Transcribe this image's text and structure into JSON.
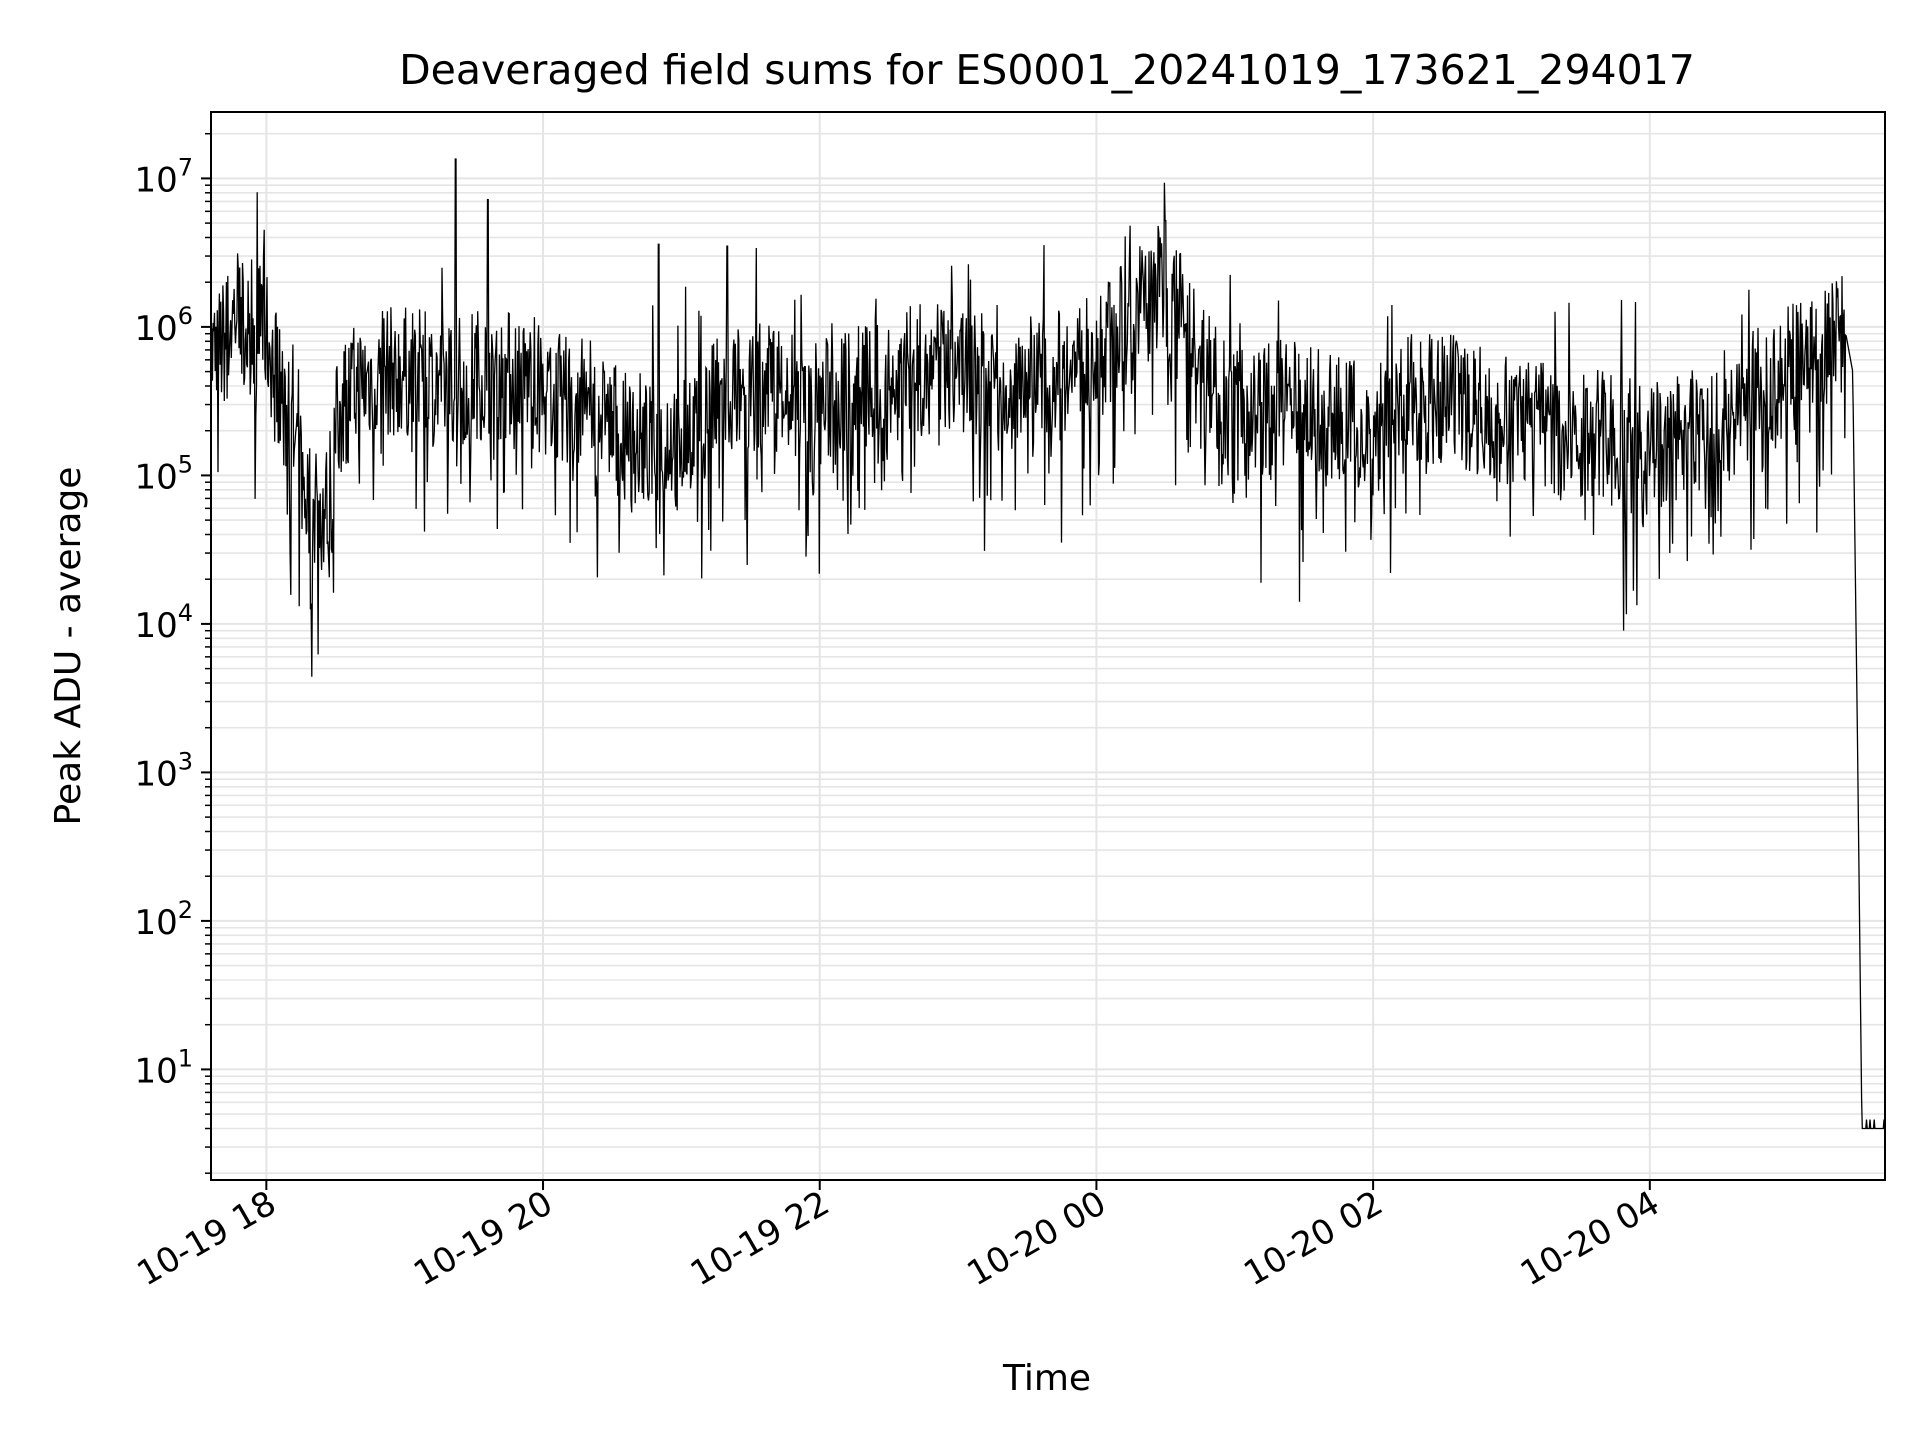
{
  "chart_data": {
    "type": "line",
    "title": "Deaveraged field sums for ES0001_20241019_173621_294017",
    "xlabel": "Time",
    "ylabel": "Peak ADU - average",
    "yscale": "log",
    "xlim": [
      "2024-10-19 17:36",
      "2024-10-20 05:42"
    ],
    "ylim": [
      1.8,
      28000000
    ],
    "grid": true,
    "line_color": "#000000",
    "grid_color": "#e5e5e5",
    "x_ticks": [
      {
        "label": "10-19 18",
        "t": "2024-10-19 18:00"
      },
      {
        "label": "10-19 20",
        "t": "2024-10-19 20:00"
      },
      {
        "label": "10-19 22",
        "t": "2024-10-19 22:00"
      },
      {
        "label": "10-20 00",
        "t": "2024-10-20 00:00"
      },
      {
        "label": "10-20 02",
        "t": "2024-10-20 02:00"
      },
      {
        "label": "10-20 04",
        "t": "2024-10-20 04:00"
      }
    ],
    "y_ticks": [
      {
        "base": "10",
        "exp": "1",
        "value": 10
      },
      {
        "base": "10",
        "exp": "2",
        "value": 100
      },
      {
        "base": "10",
        "exp": "3",
        "value": 1000
      },
      {
        "base": "10",
        "exp": "4",
        "value": 10000
      },
      {
        "base": "10",
        "exp": "5",
        "value": 100000
      },
      {
        "base": "10",
        "exp": "6",
        "value": 1000000
      },
      {
        "base": "10",
        "exp": "7",
        "value": 10000000
      }
    ],
    "series": [
      {
        "x": [
          "2024-10-19 17:36",
          "2024-10-19 17:42",
          "2024-10-19 17:48",
          "2024-10-19 17:52",
          "2024-10-19 17:58",
          "2024-10-19 18:04",
          "2024-10-19 18:10",
          "2024-10-19 18:16",
          "2024-10-19 18:20",
          "2024-10-19 18:26",
          "2024-10-19 18:32",
          "2024-10-19 18:40",
          "2024-10-19 18:50",
          "2024-10-19 19:00",
          "2024-10-19 19:10",
          "2024-10-19 19:20",
          "2024-10-19 19:30",
          "2024-10-19 19:40",
          "2024-10-19 19:50",
          "2024-10-19 20:00",
          "2024-10-19 20:20",
          "2024-10-19 20:40",
          "2024-10-19 21:00",
          "2024-10-19 21:20",
          "2024-10-19 21:40",
          "2024-10-19 22:00",
          "2024-10-19 22:20",
          "2024-10-19 22:40",
          "2024-10-19 23:00",
          "2024-10-19 23:20",
          "2024-10-19 23:40",
          "2024-10-20 00:00",
          "2024-10-20 00:15",
          "2024-10-20 00:30",
          "2024-10-20 00:45",
          "2024-10-20 01:00",
          "2024-10-20 01:20",
          "2024-10-20 01:40",
          "2024-10-20 02:00",
          "2024-10-20 02:20",
          "2024-10-20 02:40",
          "2024-10-20 03:00",
          "2024-10-20 03:20",
          "2024-10-20 03:40",
          "2024-10-20 04:00",
          "2024-10-20 04:20",
          "2024-10-20 04:40",
          "2024-10-20 05:00",
          "2024-10-20 05:15",
          "2024-10-20 05:25",
          "2024-10-20 05:28",
          "2024-10-20 05:30",
          "2024-10-20 05:32",
          "2024-10-20 05:36",
          "2024-10-20 05:42"
        ],
        "y": [
          600000,
          800000,
          1500000,
          900000,
          1200000,
          500000,
          200000,
          90000,
          55000,
          60000,
          300000,
          400000,
          500000,
          500000,
          450000,
          400000,
          500000,
          450000,
          500000,
          350000,
          300000,
          150000,
          200000,
          350000,
          450000,
          300000,
          400000,
          500000,
          550000,
          500000,
          450000,
          600000,
          1200000,
          2000000,
          600000,
          250000,
          300000,
          250000,
          200000,
          350000,
          300000,
          250000,
          200000,
          180000,
          150000,
          200000,
          300000,
          500000,
          700000,
          900000,
          500000,
          2000,
          4,
          4,
          4
        ]
      }
    ],
    "annotations": {
      "spikes": [
        {
          "t": "2024-10-19 19:22",
          "value": 13500000
        },
        {
          "t": "2024-10-19 19:36",
          "value": 7200000
        },
        {
          "t": "2024-10-19 20:50",
          "value": 3600000
        },
        {
          "t": "2024-10-19 21:20",
          "value": 3500000
        },
        {
          "t": "2024-10-20 00:30",
          "value": 5200000
        }
      ]
    }
  }
}
